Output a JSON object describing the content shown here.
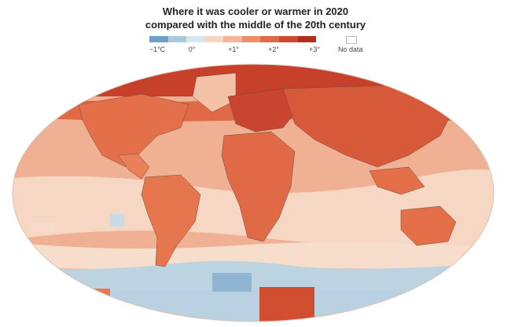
{
  "title": {
    "line1": "Where it was cooler or warmer in 2020",
    "line2": "compared with the middle of the 20th century"
  },
  "legend": {
    "ticks": [
      {
        "label": "−1°C",
        "value": -1
      },
      {
        "label": "0°",
        "value": 0
      },
      {
        "label": "+1°",
        "value": 1
      },
      {
        "label": "+2°",
        "value": 2
      },
      {
        "label": "+3°",
        "value": 3
      }
    ],
    "colors": [
      "#6f9fc9",
      "#a9c9df",
      "#d9e6ee",
      "#f6d7c3",
      "#f3b595",
      "#ec8e66",
      "#e06a45",
      "#cf4a2e",
      "#b52d1e"
    ],
    "nodata_label": "No data"
  },
  "map": {
    "ocean_color": "#f0b093",
    "land_outline_color": "#6b4a40"
  }
}
